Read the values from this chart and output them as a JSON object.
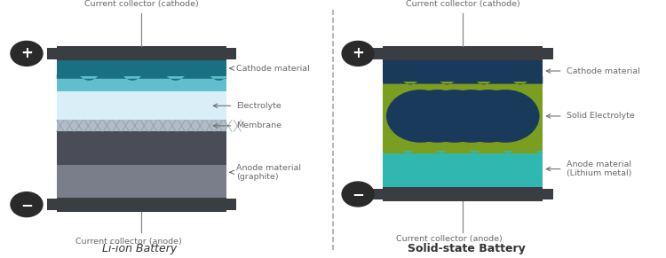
{
  "bg_color": "#ffffff",
  "text_color": "#6a6a6a",
  "dark_color": "#333333",
  "title_left": "Li-ion Battery",
  "title_right": "Solid-state Battery",
  "label_top_left": "Current collector (cathode)",
  "label_bottom_left": "Current collector (anode)",
  "label_top_right": "Current collector (cathode)",
  "label_bottom_right": "Current collector (anode)",
  "lib_labels": [
    "Cathode material",
    "Electrolyte",
    "Membrane",
    "Anode material\n(graphite)"
  ],
  "ssb_labels": [
    "Cathode material",
    "Solid Electrolyte",
    "Anode material\n(Lithium metal)"
  ],
  "collector_color": "#3a3d42",
  "cathode_dark_color": "#1a7080",
  "cathode_light_color": "#60bece",
  "electrolyte_color": "#daeef8",
  "membrane_color": "#b0bcc8",
  "membrane_line_color": "#8a9aa8",
  "anode_dark_color": "#4a4d58",
  "anode_light_color": "#7a7d8a",
  "ssb_cathode_color": "#1a3a5c",
  "ssb_electrolyte_color": "#7a9e20",
  "ssb_circle_color": "#1a3a5c",
  "ssb_anode_color": "#30b8b0",
  "plus_minus_bg": "#2a2a2a",
  "arrow_color": "#707070",
  "divider_color": "#aaaaaa"
}
